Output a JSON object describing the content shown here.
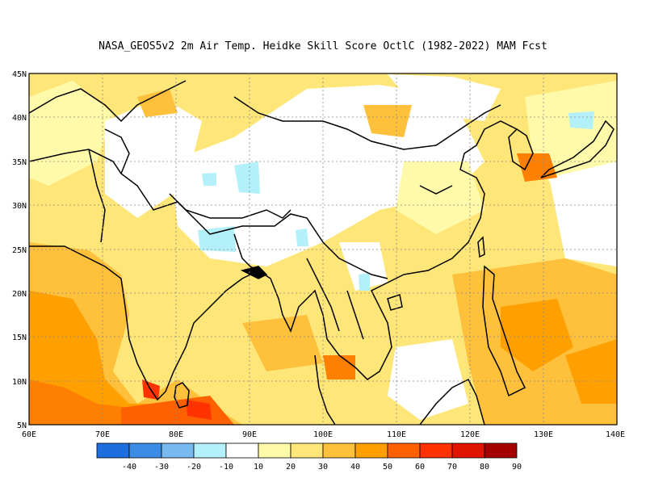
{
  "title": "NASA_GEOS5v2  2m Air Temp. Heidke Skill Score OctlC (1982-2022) MAM Fcst",
  "map": {
    "lat_labels": [
      "45N",
      "40N",
      "35N",
      "30N",
      "25N",
      "20N",
      "15N",
      "10N",
      "5N"
    ],
    "lon_labels": [
      "60E",
      "70E",
      "80E",
      "90E",
      "100E",
      "110E",
      "120E",
      "130E",
      "140E"
    ],
    "lon_range": [
      60,
      140
    ],
    "lat_range": [
      5,
      45
    ]
  },
  "colorbar": {
    "colors": [
      "#1e6ee0",
      "#3c8ce6",
      "#78b9f0",
      "#b4f0fa",
      "#ffffff",
      "#fffaaa",
      "#ffe678",
      "#ffc03c",
      "#ffa000",
      "#ff6000",
      "#ff3200",
      "#e11400",
      "#a50000"
    ],
    "labels": [
      "-40",
      "-30",
      "-20",
      "-10",
      "10",
      "20",
      "30",
      "40",
      "50",
      "60",
      "70",
      "80",
      "90"
    ]
  }
}
